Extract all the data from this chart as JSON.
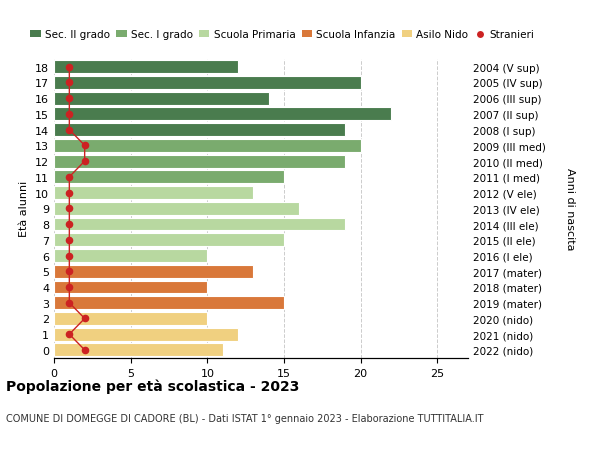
{
  "ages": [
    18,
    17,
    16,
    15,
    14,
    13,
    12,
    11,
    10,
    9,
    8,
    7,
    6,
    5,
    4,
    3,
    2,
    1,
    0
  ],
  "anni_nascita": [
    "2004 (V sup)",
    "2005 (IV sup)",
    "2006 (III sup)",
    "2007 (II sup)",
    "2008 (I sup)",
    "2009 (III med)",
    "2010 (II med)",
    "2011 (I med)",
    "2012 (V ele)",
    "2013 (IV ele)",
    "2014 (III ele)",
    "2015 (II ele)",
    "2016 (I ele)",
    "2017 (mater)",
    "2018 (mater)",
    "2019 (mater)",
    "2020 (nido)",
    "2021 (nido)",
    "2022 (nido)"
  ],
  "bar_values": [
    12,
    20,
    14,
    22,
    19,
    20,
    19,
    15,
    13,
    16,
    19,
    15,
    10,
    13,
    10,
    15,
    10,
    12,
    11
  ],
  "bar_colors": [
    "#4a7c4e",
    "#4a7c4e",
    "#4a7c4e",
    "#4a7c4e",
    "#4a7c4e",
    "#7aab6e",
    "#7aab6e",
    "#7aab6e",
    "#b8d8a0",
    "#b8d8a0",
    "#b8d8a0",
    "#b8d8a0",
    "#b8d8a0",
    "#d9783a",
    "#d9783a",
    "#d9783a",
    "#f0d080",
    "#f0d080",
    "#f0d080"
  ],
  "stranieri_values": [
    1,
    1,
    1,
    1,
    1,
    2,
    2,
    1,
    1,
    1,
    1,
    1,
    1,
    1,
    1,
    1,
    2,
    1,
    2
  ],
  "legend_labels": [
    "Sec. II grado",
    "Sec. I grado",
    "Scuola Primaria",
    "Scuola Infanzia",
    "Asilo Nido",
    "Stranieri"
  ],
  "legend_colors": [
    "#4a7c4e",
    "#7aab6e",
    "#b8d8a0",
    "#d9783a",
    "#f0d080",
    "#cc2222"
  ],
  "ylabel": "Età alunni",
  "right_label": "Anni di nascita",
  "title": "Popolazione per età scolastica - 2023",
  "subtitle": "COMUNE DI DOMEGGE DI CADORE (BL) - Dati ISTAT 1° gennaio 2023 - Elaborazione TUTTITALIA.IT",
  "xlim": [
    0,
    27
  ],
  "background_color": "#ffffff",
  "grid_color": "#cccccc"
}
